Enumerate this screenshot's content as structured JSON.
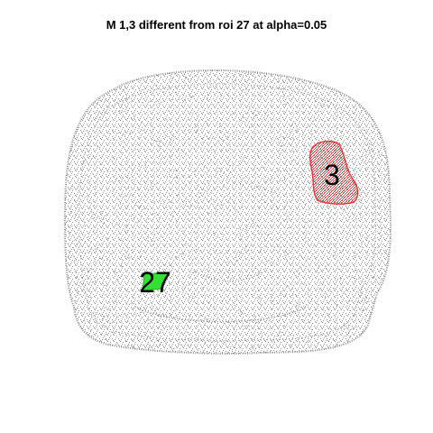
{
  "title": "M 1,3 different from roi 27 at alpha=0.05",
  "brain": {
    "color": "#8c8c8c"
  },
  "rois": [
    {
      "id": "3",
      "label": "3",
      "color": "#e83a3a"
    },
    {
      "id": "27",
      "label": "27",
      "color": "#33e033"
    }
  ]
}
